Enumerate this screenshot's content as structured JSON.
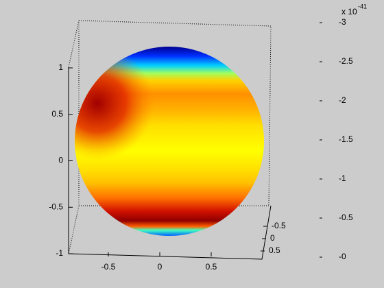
{
  "chart_data": {
    "type": "surface",
    "xlim": [
      -1,
      1
    ],
    "xticks": [
      -0.5,
      0,
      0.5
    ],
    "ylim": [
      -1,
      1
    ],
    "yticks": [
      -0.5,
      0,
      0.5
    ],
    "zlim": [
      -1,
      1
    ],
    "zticks": [
      -1,
      -0.5,
      0,
      0.5,
      1
    ],
    "colorbar": {
      "clim": [
        0,
        -3
      ],
      "ticks": [
        -3,
        -2.5,
        -2,
        -1.5,
        -1,
        -0.5,
        {
          "value": 0,
          "label": "-0"
        }
      ],
      "scale_text": "x 10",
      "scale_exponent": "-41"
    }
  }
}
